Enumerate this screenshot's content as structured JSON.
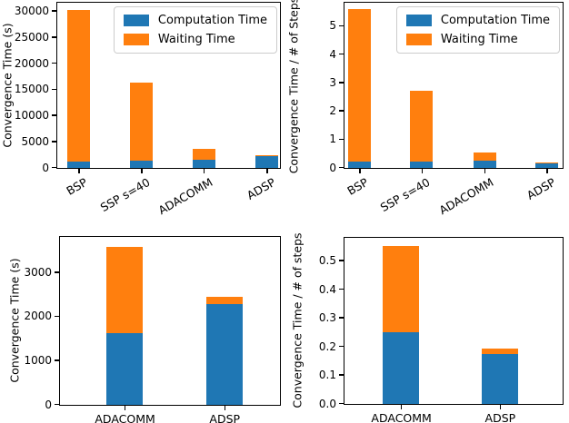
{
  "figure": {
    "background": "#ffffff",
    "text_color": "#000000",
    "accent_colors": {
      "computation": "#1f77b4",
      "waiting": "#ff7f0e"
    }
  },
  "chart_data": [
    {
      "type": "bar",
      "stacked": true,
      "position": "top-left",
      "ylabel": "Convergence Time (s)",
      "categories": [
        "BSP",
        "SSP s=40",
        "ADACOMM",
        "ADSP"
      ],
      "series": [
        {
          "name": "Computation Time",
          "color": "#1f77b4",
          "values": [
            1150,
            1400,
            1620,
            2290
          ]
        },
        {
          "name": "Waiting Time",
          "color": "#ff7f0e",
          "values": [
            29050,
            14900,
            1960,
            160
          ]
        }
      ],
      "ylim": [
        0,
        31500
      ],
      "yticks": [
        0,
        5000,
        10000,
        15000,
        20000,
        25000,
        30000
      ],
      "ytick_labels": [
        "0",
        "5000",
        "10000",
        "15000",
        "20000",
        "25000",
        "30000"
      ],
      "legend": true,
      "legend_position": "upper right",
      "xtick_rotation": 30,
      "grid": false
    },
    {
      "type": "bar",
      "stacked": true,
      "position": "top-right",
      "ylabel": "Convergence Time / # of Steps",
      "categories": [
        "BSP",
        "SSP s=40",
        "ADACOMM",
        "ADSP"
      ],
      "series": [
        {
          "name": "Computation Time",
          "color": "#1f77b4",
          "values": [
            0.24,
            0.24,
            0.25,
            0.175
          ]
        },
        {
          "name": "Waiting Time",
          "color": "#ff7f0e",
          "values": [
            5.36,
            2.5,
            0.3,
            0.018
          ]
        }
      ],
      "ylim": [
        0,
        5.8
      ],
      "yticks": [
        0,
        1,
        2,
        3,
        4,
        5
      ],
      "ytick_labels": [
        "0",
        "1",
        "2",
        "3",
        "4",
        "5"
      ],
      "legend": true,
      "legend_position": "upper right",
      "xtick_rotation": 30,
      "grid": false
    },
    {
      "type": "bar",
      "stacked": true,
      "position": "bottom-left",
      "ylabel": "Convergence Time (s)",
      "categories": [
        "ADACOMM",
        "ADSP"
      ],
      "series": [
        {
          "name": "Computation Time",
          "color": "#1f77b4",
          "values": [
            1620,
            2290
          ]
        },
        {
          "name": "Waiting Time",
          "color": "#ff7f0e",
          "values": [
            1960,
            160
          ]
        }
      ],
      "ylim": [
        0,
        3790
      ],
      "yticks": [
        0,
        1000,
        2000,
        3000
      ],
      "ytick_labels": [
        "0",
        "1000",
        "2000",
        "3000"
      ],
      "legend": false,
      "xtick_rotation": 0,
      "grid": false
    },
    {
      "type": "bar",
      "stacked": true,
      "position": "bottom-right",
      "ylabel": "Convergence Time / # of steps",
      "categories": [
        "ADACOMM",
        "ADSP"
      ],
      "series": [
        {
          "name": "Computation Time",
          "color": "#1f77b4",
          "values": [
            0.252,
            0.175
          ]
        },
        {
          "name": "Waiting Time",
          "color": "#ff7f0e",
          "values": [
            0.3,
            0.018
          ]
        }
      ],
      "ylim": [
        0,
        0.578
      ],
      "yticks": [
        0.0,
        0.1,
        0.2,
        0.3,
        0.4,
        0.5
      ],
      "ytick_labels": [
        "0.0",
        "0.1",
        "0.2",
        "0.3",
        "0.4",
        "0.5"
      ],
      "legend": false,
      "xtick_rotation": 0,
      "grid": false
    }
  ]
}
